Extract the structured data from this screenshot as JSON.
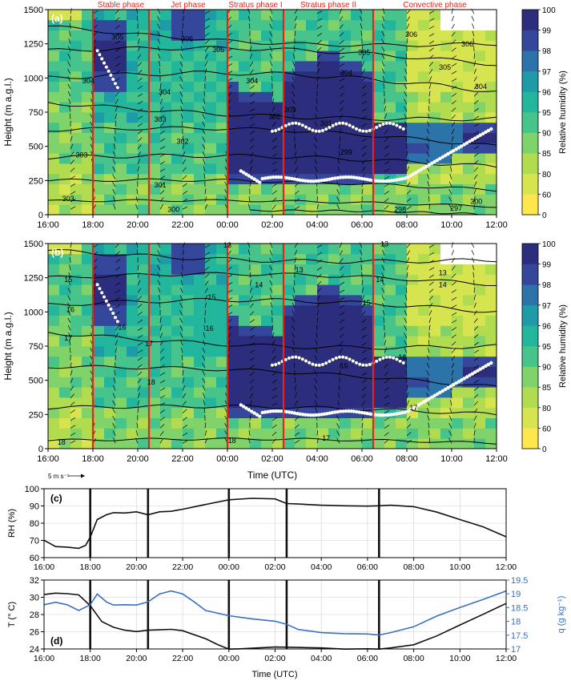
{
  "colors": {
    "phase_line": "#e8231c",
    "black_line": "#111111",
    "humidity_blue": "#3a6fc4",
    "grid": "#cfcfcf",
    "rh_scale": [
      "#fde74c",
      "#d6e44f",
      "#b2dc4f",
      "#7fd36a",
      "#46c48b",
      "#22b79d",
      "#1f9ba8",
      "#2b73a8",
      "#34479a",
      "#2d2d7d"
    ]
  },
  "time_ticks": [
    "16:00",
    "18:00",
    "20:00",
    "22:00",
    "00:00",
    "02:00",
    "04:00",
    "06:00",
    "08:00",
    "10:00",
    "12:00"
  ],
  "phase_times_hours_since_1600": [
    2,
    4.5,
    8,
    10.5,
    14.5
  ],
  "phase_labels": [
    {
      "text": "Stable phase",
      "t": 3.25
    },
    {
      "text": "Jet phase",
      "t": 6.25
    },
    {
      "text": "Stratus phase I",
      "t": 9.25
    },
    {
      "text": "Stratus phase II",
      "t": 12.5
    },
    {
      "text": "Convective phase",
      "t": 17.25
    }
  ],
  "panel_a": {
    "tag": "(a)",
    "ylabel": "Height (m a.g.l.)",
    "yticks": [
      "0",
      "250",
      "500",
      "750",
      "1000",
      "1250",
      "1500"
    ],
    "contour_labels": [
      {
        "text": "306",
        "t": 6.2,
        "h": 1270
      },
      {
        "text": "306",
        "t": 16.2,
        "h": 1300
      },
      {
        "text": "306",
        "t": 18.7,
        "h": 1230
      },
      {
        "text": "305",
        "t": 3.1,
        "h": 1280
      },
      {
        "text": "305",
        "t": 7.6,
        "h": 1190
      },
      {
        "text": "305",
        "t": 14.1,
        "h": 1170
      },
      {
        "text": "305",
        "t": 17.7,
        "h": 1060
      },
      {
        "text": "304",
        "t": 1.8,
        "h": 960
      },
      {
        "text": "304",
        "t": 5.2,
        "h": 880
      },
      {
        "text": "304",
        "t": 9.1,
        "h": 960
      },
      {
        "text": "304",
        "t": 13.3,
        "h": 1020
      },
      {
        "text": "304",
        "t": 19.3,
        "h": 920
      },
      {
        "text": "303",
        "t": 1.5,
        "h": 420
      },
      {
        "text": "303",
        "t": 5.0,
        "h": 680
      },
      {
        "text": "303",
        "t": 10.8,
        "h": 750
      },
      {
        "text": "302",
        "t": 6.0,
        "h": 520
      },
      {
        "text": "302",
        "t": 10.1,
        "h": 700
      },
      {
        "text": "301",
        "t": 5.0,
        "h": 200
      },
      {
        "text": "301",
        "t": 12.4,
        "h": 650
      },
      {
        "text": "300",
        "t": 5.6,
        "h": 20
      },
      {
        "text": "300",
        "t": 19.1,
        "h": 80
      },
      {
        "text": "299",
        "t": 13.3,
        "h": 440
      },
      {
        "text": "298",
        "t": 15.7,
        "h": 20
      },
      {
        "text": "297",
        "t": 18.2,
        "h": 30
      },
      {
        "text": "303",
        "t": 0.9,
        "h": 100
      }
    ]
  },
  "panel_b": {
    "tag": "(b)",
    "ylabel": "Height (m a.g.l.)",
    "yticks": [
      "0",
      "250",
      "500",
      "750",
      "1000",
      "1250",
      "1500"
    ],
    "contour_labels": [
      {
        "text": "13",
        "t": 8.0,
        "h": 1470
      },
      {
        "text": "13",
        "t": 15.0,
        "h": 1480
      },
      {
        "text": "13",
        "t": 17.6,
        "h": 1270
      },
      {
        "text": "13",
        "t": 11.2,
        "h": 1290
      },
      {
        "text": "14",
        "t": 14.8,
        "h": 1220
      },
      {
        "text": "14",
        "t": 9.4,
        "h": 1180
      },
      {
        "text": "14",
        "t": 17.6,
        "h": 1180
      },
      {
        "text": "15",
        "t": 0.9,
        "h": 1220
      },
      {
        "text": "15",
        "t": 7.3,
        "h": 1090
      },
      {
        "text": "15",
        "t": 14.2,
        "h": 1050
      },
      {
        "text": "16",
        "t": 1.0,
        "h": 1000
      },
      {
        "text": "16",
        "t": 7.2,
        "h": 860
      },
      {
        "text": "16",
        "t": 13.2,
        "h": 590
      },
      {
        "text": "16",
        "t": 15.8,
        "h": 650
      },
      {
        "text": "17",
        "t": 0.9,
        "h": 790
      },
      {
        "text": "17",
        "t": 4.5,
        "h": 750
      },
      {
        "text": "17",
        "t": 16.3,
        "h": 280
      },
      {
        "text": "17",
        "t": 12.4,
        "h": 60
      },
      {
        "text": "18",
        "t": 4.6,
        "h": 470
      },
      {
        "text": "18",
        "t": 0.6,
        "h": 30
      },
      {
        "text": "18",
        "t": 8.2,
        "h": 40
      },
      {
        "text": "16",
        "t": 3.3,
        "h": 870
      }
    ]
  },
  "colorbar": {
    "label": "Relative humidity (%)",
    "ticks": [
      "0",
      "60",
      "80",
      "85",
      "90",
      "95",
      "96",
      "97",
      "98",
      "99",
      "100"
    ]
  },
  "wind_legend": {
    "text": "5 m s⁻¹"
  },
  "xlabel": "Time (UTC)",
  "panel_c": {
    "tag": "(c)",
    "ylabel": "RH (%)",
    "yticks": [
      "60",
      "70",
      "80",
      "90",
      "100"
    ]
  },
  "panel_d": {
    "tag": "(d)",
    "ylabel": "T (° C)",
    "ylabel_right": "q (g kg⁻¹)",
    "yticks": [
      "24",
      "26",
      "28",
      "30",
      "32"
    ],
    "yticks_right": [
      "17",
      "17.5",
      "18",
      "18.5",
      "19",
      "19.5"
    ]
  },
  "chart_data": [
    {
      "type": "heatmap",
      "panel": "a",
      "title": "",
      "xlabel": "",
      "ylabel": "Height (m a.g.l.)",
      "x_range_hours_since_1600": [
        0,
        20
      ],
      "ylim": [
        0,
        1500
      ],
      "colorbar_label": "Relative humidity (%)",
      "contour_variable_levels": [
        297,
        298,
        299,
        300,
        301,
        302,
        303,
        304,
        305,
        306
      ],
      "phases": [
        "Stable phase",
        "Jet phase",
        "Stratus phase I",
        "Stratus phase II",
        "Convective phase"
      ]
    },
    {
      "type": "heatmap",
      "panel": "b",
      "title": "",
      "xlabel": "Time (UTC)",
      "ylabel": "Height (m a.g.l.)",
      "x_range_hours_since_1600": [
        0,
        20
      ],
      "ylim": [
        0,
        1500
      ],
      "colorbar_label": "Relative humidity (%)",
      "contour_variable_levels": [
        13,
        14,
        15,
        16,
        17,
        18
      ]
    },
    {
      "type": "line",
      "panel": "c",
      "xlabel": "",
      "ylabel": "RH (%)",
      "ylim": [
        60,
        100
      ],
      "grid": true,
      "series": [
        {
          "x_hours": [
            0,
            0.5,
            1,
            1.5,
            1.8,
            2,
            2.3,
            2.7,
            3,
            3.5,
            4,
            4.5,
            5,
            5.5,
            6,
            7,
            8,
            9,
            10,
            10.5,
            11,
            12,
            13,
            14,
            14.5,
            15,
            16,
            17,
            18,
            19,
            20
          ],
          "values": [
            70,
            66.5,
            66,
            65.5,
            67,
            72,
            82,
            85,
            86,
            86,
            86.5,
            85,
            86.5,
            87,
            88,
            91,
            93.5,
            94.5,
            94,
            91.5,
            91,
            90.5,
            90,
            90,
            90,
            90.5,
            89.5,
            86.5,
            82,
            78,
            72
          ]
        }
      ]
    },
    {
      "type": "line",
      "panel": "d",
      "xlabel": "Time (UTC)",
      "ylabel": "T (° C)",
      "ylabel_right": "q (g kg⁻¹)",
      "ylim": [
        24,
        32
      ],
      "ylim_right": [
        17,
        19.5
      ],
      "grid": true,
      "series": [
        {
          "axis": "left",
          "x_hours": [
            0,
            0.5,
            1,
            1.5,
            2,
            2.5,
            3,
            3.5,
            4,
            4.5,
            5,
            5.5,
            6,
            7,
            7.5,
            8,
            8.5,
            9,
            10,
            11,
            12,
            13,
            14,
            14.5,
            15,
            16,
            17,
            18,
            19,
            20
          ],
          "values": [
            30.3,
            30.5,
            30.4,
            30.3,
            29,
            27.2,
            26.5,
            26.2,
            26,
            26.2,
            26.2,
            26.3,
            26.1,
            25.2,
            24.5,
            24,
            24,
            24.1,
            24.2,
            24.2,
            24.1,
            24,
            24,
            24,
            24.1,
            24.5,
            25.5,
            26.8,
            28,
            29.3
          ]
        },
        {
          "axis": "right",
          "x_hours": [
            0,
            0.5,
            1,
            1.5,
            2,
            2.3,
            2.7,
            3,
            3.5,
            4,
            4.5,
            5,
            5.5,
            6,
            6.5,
            7,
            8,
            9,
            10,
            10.5,
            11,
            12,
            13,
            14,
            14.5,
            15,
            16,
            17,
            18,
            19,
            20
          ],
          "values": [
            18.6,
            18.7,
            18.6,
            18.4,
            18.6,
            19.0,
            18.7,
            18.6,
            18.6,
            18.6,
            18.7,
            19.0,
            19.1,
            19.0,
            18.7,
            18.4,
            18.2,
            18.1,
            18.0,
            17.9,
            17.7,
            17.6,
            17.55,
            17.55,
            17.5,
            17.6,
            17.8,
            18.2,
            18.5,
            18.8,
            19.1
          ]
        }
      ]
    }
  ]
}
